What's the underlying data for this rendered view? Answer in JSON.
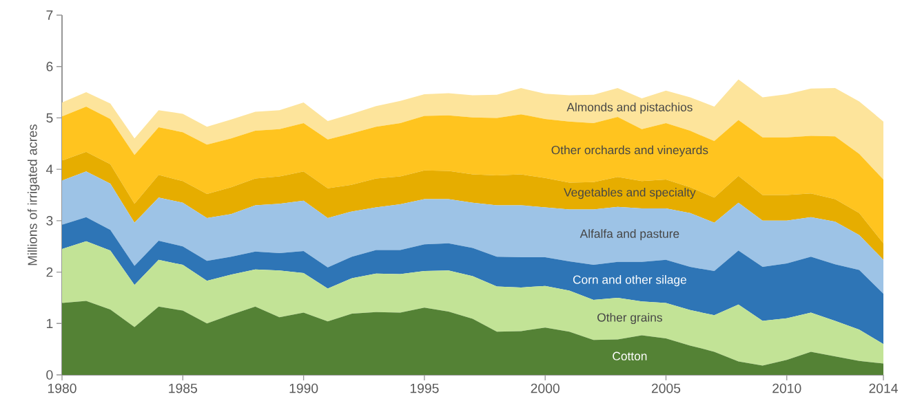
{
  "chart_data": {
    "type": "area",
    "stacked": true,
    "ylabel": "Millions of irrigated acres",
    "legend": false,
    "x": [
      1980,
      1981,
      1982,
      1983,
      1984,
      1985,
      1986,
      1987,
      1988,
      1989,
      1990,
      1991,
      1992,
      1993,
      1994,
      1995,
      1996,
      1997,
      1998,
      1999,
      2000,
      2001,
      2002,
      2003,
      2004,
      2005,
      2006,
      2007,
      2008,
      2009,
      2010,
      2011,
      2012,
      2013,
      2014
    ],
    "xlim": [
      1980,
      2014
    ],
    "xticks": [
      1980,
      1985,
      1990,
      1995,
      2000,
      2005,
      2010,
      2014
    ],
    "ylim": [
      0,
      7
    ],
    "yticks": [
      0,
      1,
      2,
      3,
      4,
      5,
      6,
      7
    ],
    "series": [
      {
        "name": "Cotton",
        "color": "#548235",
        "values": [
          1.4,
          1.44,
          1.27,
          0.93,
          1.33,
          1.25,
          1.0,
          1.17,
          1.33,
          1.12,
          1.21,
          1.04,
          1.19,
          1.22,
          1.21,
          1.31,
          1.23,
          1.09,
          0.84,
          0.85,
          0.92,
          0.84,
          0.68,
          0.69,
          0.77,
          0.71,
          0.57,
          0.45,
          0.26,
          0.18,
          0.29,
          0.45,
          0.36,
          0.27,
          0.22
        ]
      },
      {
        "name": "Other grains",
        "color": "#c2e396",
        "values": [
          1.05,
          1.16,
          1.15,
          0.82,
          0.91,
          0.89,
          0.83,
          0.78,
          0.72,
          0.91,
          0.77,
          0.64,
          0.69,
          0.75,
          0.75,
          0.71,
          0.8,
          0.83,
          0.88,
          0.85,
          0.81,
          0.8,
          0.78,
          0.81,
          0.66,
          0.69,
          0.69,
          0.71,
          1.11,
          0.87,
          0.81,
          0.76,
          0.69,
          0.61,
          0.38
        ]
      },
      {
        "name": "Corn and other silage",
        "color": "#2e75b6",
        "values": [
          0.47,
          0.47,
          0.4,
          0.37,
          0.37,
          0.36,
          0.39,
          0.35,
          0.35,
          0.34,
          0.43,
          0.41,
          0.42,
          0.46,
          0.47,
          0.52,
          0.53,
          0.55,
          0.58,
          0.59,
          0.56,
          0.57,
          0.68,
          0.7,
          0.77,
          0.84,
          0.84,
          0.86,
          1.05,
          1.05,
          1.07,
          1.09,
          1.1,
          1.16,
          0.98
        ]
      },
      {
        "name": "Alfalfa and pasture",
        "color": "#9dc3e6",
        "values": [
          0.86,
          0.89,
          0.9,
          0.84,
          0.84,
          0.85,
          0.83,
          0.83,
          0.9,
          0.96,
          0.98,
          0.96,
          0.88,
          0.83,
          0.89,
          0.88,
          0.86,
          0.88,
          1.0,
          1.01,
          0.97,
          1.01,
          1.08,
          1.07,
          1.04,
          1.0,
          1.05,
          0.94,
          0.93,
          0.9,
          0.83,
          0.77,
          0.83,
          0.68,
          0.66
        ]
      },
      {
        "name": "Vegetables and specialty",
        "color": "#e6ad00",
        "values": [
          0.39,
          0.38,
          0.38,
          0.37,
          0.44,
          0.42,
          0.47,
          0.52,
          0.52,
          0.53,
          0.57,
          0.58,
          0.52,
          0.56,
          0.54,
          0.56,
          0.55,
          0.55,
          0.58,
          0.6,
          0.57,
          0.52,
          0.53,
          0.58,
          0.53,
          0.56,
          0.5,
          0.49,
          0.52,
          0.5,
          0.5,
          0.46,
          0.44,
          0.43,
          0.32
        ]
      },
      {
        "name": "Other orchards and vineyards",
        "color": "#ffc41f",
        "values": [
          0.86,
          0.88,
          0.88,
          0.95,
          0.93,
          0.95,
          0.96,
          0.95,
          0.93,
          0.92,
          0.94,
          0.95,
          1.0,
          1.01,
          1.04,
          1.06,
          1.08,
          1.11,
          1.12,
          1.17,
          1.15,
          1.19,
          1.15,
          1.17,
          1.01,
          1.1,
          1.1,
          1.1,
          1.09,
          1.12,
          1.12,
          1.12,
          1.22,
          1.15,
          1.24
        ]
      },
      {
        "name": "Almonds and pistachios",
        "color": "#fde49b",
        "values": [
          0.27,
          0.28,
          0.3,
          0.32,
          0.33,
          0.36,
          0.35,
          0.37,
          0.37,
          0.37,
          0.4,
          0.36,
          0.38,
          0.4,
          0.43,
          0.42,
          0.43,
          0.43,
          0.45,
          0.51,
          0.49,
          0.51,
          0.55,
          0.56,
          0.6,
          0.63,
          0.65,
          0.67,
          0.79,
          0.78,
          0.84,
          0.92,
          0.94,
          1.02,
          1.13
        ]
      }
    ]
  }
}
